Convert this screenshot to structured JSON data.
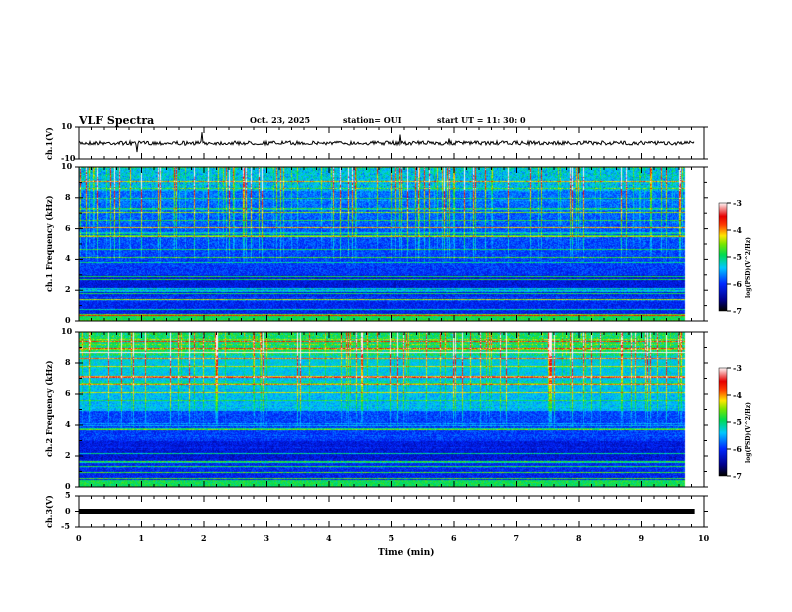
{
  "header": {
    "title": "VLF Spectra",
    "date": "Oct. 23, 2025",
    "station": "station= OUI",
    "start": "start  UT =   11: 30: 0"
  },
  "chart_data": [
    {
      "type": "line",
      "name": "ch1 waveform",
      "ylabel": "ch.1(V)",
      "ylim": [
        -10,
        10
      ],
      "yticks": [
        "10",
        "-10"
      ],
      "xlim": [
        0,
        10
      ]
    },
    {
      "type": "heatmap",
      "name": "ch1 spectrogram",
      "ylabel": "ch.1 Frequency (kHz)",
      "ylim": [
        0,
        10
      ],
      "yticks": [
        "0",
        "2",
        "4",
        "6",
        "8",
        "10"
      ],
      "xlim": [
        0,
        10
      ],
      "data_end_min": 9.85,
      "colorbar": {
        "label": "log(PSD)(V^2/Hz)",
        "ticks": [
          "-3",
          "-4",
          "-5",
          "-6",
          "-7"
        ],
        "range": [
          -7,
          -3
        ]
      }
    },
    {
      "type": "heatmap",
      "name": "ch2 spectrogram",
      "ylabel": "ch.2 Frequency (kHz)",
      "ylim": [
        0,
        10
      ],
      "yticks": [
        "0",
        "2",
        "4",
        "6",
        "8",
        "10"
      ],
      "xlim": [
        0,
        10
      ],
      "data_end_min": 9.85,
      "colorbar": {
        "label": "log(PSD)(V^2/Hz)",
        "ticks": [
          "-3",
          "-4",
          "-5",
          "-6",
          "-7"
        ],
        "range": [
          -7,
          -3
        ]
      }
    },
    {
      "type": "line",
      "name": "ch3 waveform",
      "ylabel": "ch.3(V)",
      "ylim": [
        -5,
        5
      ],
      "yticks": [
        "5",
        "0",
        "-5"
      ],
      "xlim": [
        0,
        10
      ]
    }
  ],
  "xaxis": {
    "label": "Time (min)",
    "ticks": [
      "0",
      "1",
      "2",
      "3",
      "4",
      "5",
      "6",
      "7",
      "8",
      "9",
      "10"
    ]
  }
}
